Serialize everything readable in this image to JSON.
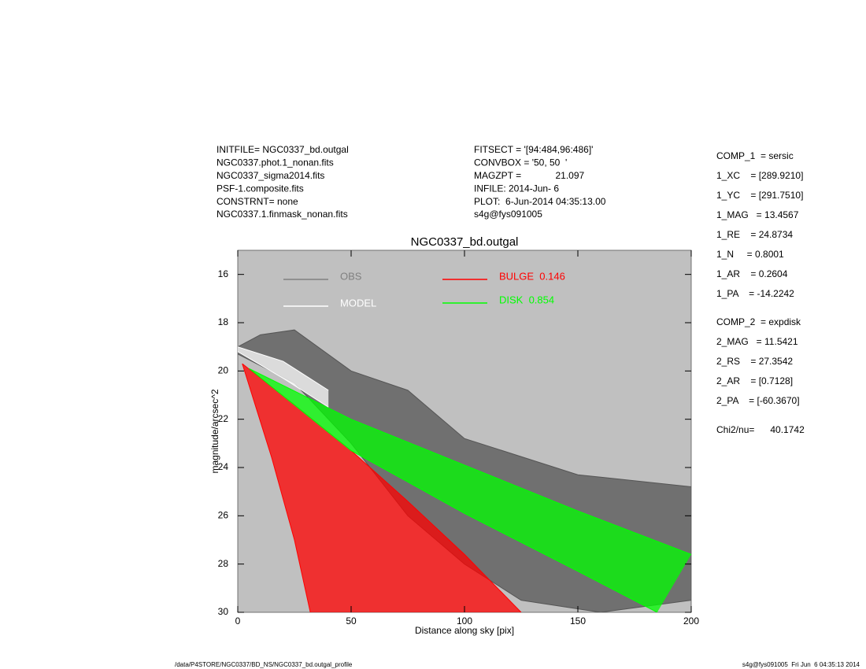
{
  "header": {
    "left": [
      "INITFILE= NGC0337_bd.outgal",
      "NGC0337.phot.1_nonan.fits",
      "NGC0337_sigma2014.fits",
      "PSF-1.composite.fits",
      "CONSTRNT= none",
      "NGC0337.1.finmask_nonan.fits"
    ],
    "middle": [
      "FITSECT = '[94:484,96:486]'",
      "CONVBOX = '50, 50  '",
      "MAGZPT =             21.097",
      "INFILE: 2014-Jun- 6",
      "PLOT:  6-Jun-2014 04:35:13.00",
      "s4g@fys091005"
    ]
  },
  "parameters": [
    [
      "COMP_1  = sersic",
      "1_XC    = [289.9210]",
      "1_YC    = [291.7510]",
      "1_MAG   = 13.4567",
      "1_RE    = 24.8734",
      "1_N     = 0.8001",
      "1_AR    = 0.2604",
      "1_PA    = -14.2242"
    ],
    [
      "COMP_2  = expdisk",
      "2_MAG   = 11.5421",
      "2_RS    = 27.3542",
      "2_AR    = [0.7128]",
      "2_PA    = [-60.3670]"
    ],
    [
      "Chi2/nu=      40.1742"
    ]
  ],
  "footer": {
    "left": "/data/P4STORE/NGC0337/BD_NS/NGC0337_bd.outgal_profile",
    "right": "s4g@fys091005  Fri Jun  6 04:35:13 2014"
  },
  "chart_data": {
    "type": "band",
    "title": "NGC0337_bd.outgal",
    "x_label": "Distance along sky [pix]",
    "y_label": "magnitude/arcsec^2",
    "xlim": [
      0,
      200
    ],
    "xticks": [
      0,
      50,
      100,
      150,
      200
    ],
    "ylim": [
      30,
      15
    ],
    "yticks": [
      16,
      18,
      20,
      22,
      24,
      26,
      28,
      30
    ],
    "background": "#c0c0c0",
    "series": [
      {
        "name": "OBS",
        "color": "#555555",
        "legend_color": "#808080",
        "upper": {
          "x": [
            0,
            10,
            25,
            50,
            75,
            100,
            150,
            200
          ],
          "y": [
            19,
            18.5,
            18.3,
            20,
            20.8,
            22.8,
            24.3,
            24.8
          ]
        },
        "lower": {
          "x": [
            0,
            25,
            50,
            75,
            100,
            125,
            160,
            200
          ],
          "y": [
            19.3,
            20.5,
            23,
            26,
            28,
            29.5,
            30,
            29.5
          ]
        }
      },
      {
        "name": "MODEL",
        "color": "#ffffff",
        "legend_color": "#ffffff",
        "upper": {
          "x": [
            0,
            20,
            40
          ],
          "y": [
            19,
            19.6,
            20.8
          ]
        },
        "lower": {
          "x": [
            0,
            20,
            40
          ],
          "y": [
            19.2,
            20.3,
            21.5
          ]
        }
      },
      {
        "name": "BULGE  0.146",
        "color": "#ff0000",
        "legend_color": "#ff0000",
        "upper": {
          "x": [
            2,
            25,
            50,
            75,
            100,
            125
          ],
          "y": [
            19.7,
            21.4,
            23.3,
            25.4,
            27.6,
            30
          ]
        },
        "lower": {
          "x": [
            2,
            8,
            15,
            25,
            32
          ],
          "y": [
            19.7,
            21.5,
            23.6,
            27,
            30
          ]
        }
      },
      {
        "name": "DISK  0.854",
        "color": "#00ff00",
        "legend_color": "#00ff00",
        "upper": {
          "x": [
            5,
            50,
            100,
            150,
            200
          ],
          "y": [
            19.9,
            22,
            23.9,
            25.8,
            27.6
          ]
        },
        "lower": {
          "x": [
            5,
            50,
            100,
            150,
            185
          ],
          "y": [
            19.9,
            23.3,
            25.9,
            28.3,
            30
          ]
        }
      }
    ]
  }
}
